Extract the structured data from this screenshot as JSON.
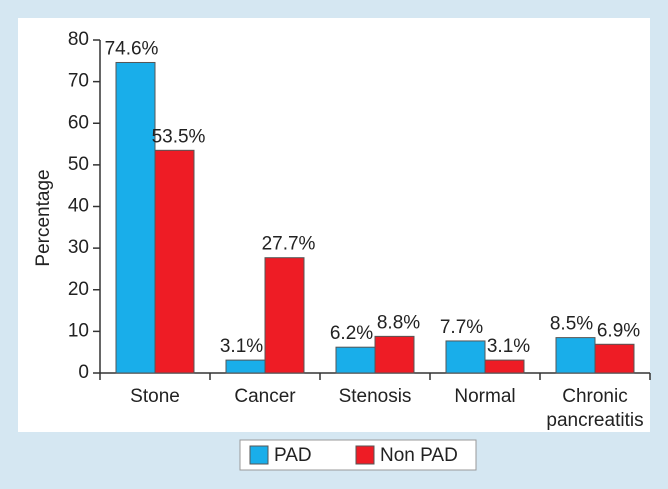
{
  "chart_data": {
    "type": "bar",
    "ylabel": "Percentage",
    "categories": [
      "Stone",
      "Cancer",
      "Stenosis",
      "Normal",
      "Chronic pancreatitis"
    ],
    "series": [
      {
        "name": "PAD",
        "color": "#19aeea",
        "values": [
          74.6,
          3.1,
          6.2,
          7.7,
          8.5
        ],
        "value_labels": [
          "74.6%",
          "3.1%",
          "6.2%",
          "7.7%",
          "8.5%"
        ]
      },
      {
        "name": "Non PAD",
        "color": "#ee1c25",
        "values": [
          53.5,
          27.7,
          8.8,
          3.1,
          6.9
        ],
        "value_labels": [
          "53.5%",
          "27.7%",
          "8.8%",
          "3.1%",
          "6.9%"
        ]
      }
    ],
    "ylim": [
      0,
      80
    ],
    "yticks": [
      0,
      10,
      20,
      30,
      40,
      50,
      60,
      70,
      80
    ],
    "legend": "bottom"
  }
}
